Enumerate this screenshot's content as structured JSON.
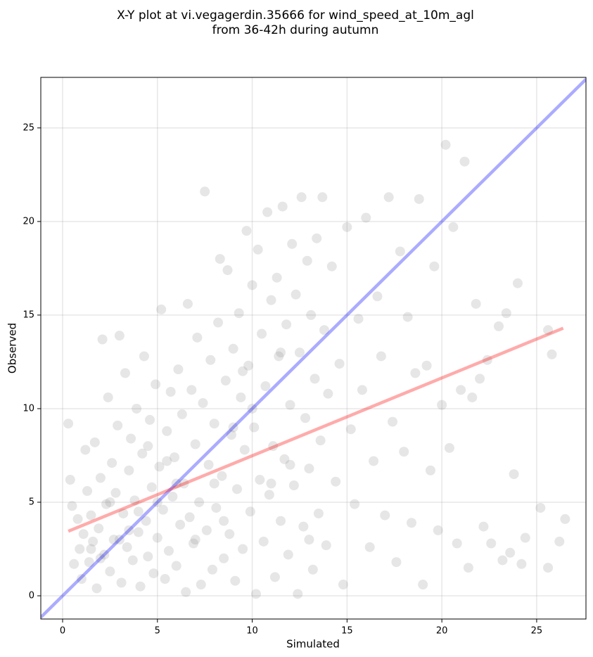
{
  "chart_data": {
    "type": "scatter",
    "title": [
      "X-Y plot at vi.vegagerdin.35666 for wind_speed_at_10m_agl",
      "from 36-42h during autumn"
    ],
    "xlabel": "Simulated",
    "ylabel": "Observed",
    "xlim": [
      -1.15,
      27.6
    ],
    "ylim": [
      -1.24,
      27.7
    ],
    "xticks": [
      0,
      5,
      10,
      15,
      20,
      25
    ],
    "yticks": [
      0,
      5,
      10,
      15,
      20,
      25
    ],
    "grid": true,
    "series": [
      {
        "color": "#808080",
        "x": [
          0.3,
          0.4,
          0.5,
          0.6,
          0.8,
          0.9,
          1.0,
          1.1,
          1.2,
          1.3,
          1.4,
          1.5,
          1.6,
          1.7,
          1.8,
          1.9,
          2.0,
          2.1,
          2.2,
          2.3,
          2.4,
          2.5,
          2.6,
          2.7,
          2.8,
          2.9,
          3.0,
          3.1,
          3.2,
          3.3,
          3.4,
          3.5,
          3.6,
          3.7,
          3.8,
          3.9,
          4.0,
          4.1,
          4.2,
          4.3,
          4.4,
          4.5,
          4.6,
          4.7,
          4.8,
          4.9,
          5.0,
          5.1,
          5.2,
          5.3,
          5.4,
          5.5,
          5.6,
          5.7,
          5.8,
          5.9,
          6.0,
          6.1,
          6.2,
          6.3,
          6.4,
          6.5,
          6.6,
          6.7,
          6.8,
          6.9,
          7.0,
          7.1,
          7.2,
          7.3,
          7.4,
          7.5,
          7.6,
          7.7,
          7.8,
          7.9,
          8.0,
          8.1,
          8.2,
          8.3,
          8.4,
          8.5,
          8.6,
          8.7,
          8.8,
          8.9,
          9.0,
          9.1,
          9.2,
          9.3,
          9.4,
          9.5,
          9.6,
          9.7,
          9.8,
          9.9,
          10.0,
          10.1,
          10.2,
          10.3,
          10.4,
          10.5,
          10.6,
          10.7,
          10.8,
          10.9,
          11.0,
          11.1,
          11.2,
          11.3,
          11.4,
          11.5,
          11.6,
          11.7,
          11.8,
          11.9,
          12.0,
          12.1,
          12.2,
          12.3,
          12.4,
          12.5,
          12.6,
          12.7,
          12.8,
          12.9,
          13.0,
          13.1,
          13.2,
          13.3,
          13.4,
          13.5,
          13.6,
          13.7,
          13.8,
          13.9,
          14.0,
          14.2,
          14.4,
          14.6,
          14.8,
          15.0,
          15.2,
          15.4,
          15.6,
          15.8,
          16.0,
          16.2,
          16.4,
          16.6,
          16.8,
          17.0,
          17.2,
          17.4,
          17.6,
          17.8,
          18.0,
          18.2,
          18.4,
          18.6,
          18.8,
          19.0,
          19.2,
          19.4,
          19.6,
          19.8,
          20.0,
          20.2,
          20.4,
          20.6,
          20.8,
          21.0,
          21.2,
          21.4,
          21.6,
          21.8,
          22.0,
          22.2,
          22.4,
          22.6,
          23.0,
          23.2,
          23.4,
          23.6,
          23.8,
          24.0,
          24.2,
          24.4,
          25.2,
          25.6,
          25.8,
          26.2,
          26.5,
          25.6,
          2.0,
          3.0,
          4.0,
          5.0,
          6.0,
          7.0,
          8.0,
          9.0,
          10.0,
          11.0,
          12.0,
          13.0,
          5.5,
          4.5,
          3.5,
          2.5,
          1.5,
          8.5,
          9.5,
          11.5
        ],
        "values": [
          9.2,
          6.2,
          4.8,
          1.7,
          4.1,
          2.5,
          0.9,
          3.3,
          7.8,
          5.6,
          1.8,
          4.3,
          2.9,
          8.2,
          0.4,
          3.6,
          6.3,
          13.7,
          2.2,
          4.9,
          10.6,
          1.3,
          7.1,
          3.0,
          5.5,
          9.1,
          13.9,
          0.7,
          4.4,
          11.9,
          2.6,
          6.7,
          8.4,
          1.9,
          5.1,
          10.0,
          3.4,
          0.5,
          7.6,
          12.8,
          4.0,
          2.1,
          9.4,
          5.8,
          1.2,
          11.3,
          3.1,
          6.9,
          15.3,
          4.6,
          0.9,
          8.8,
          2.4,
          10.9,
          5.3,
          7.4,
          1.6,
          12.1,
          3.8,
          9.7,
          6.0,
          0.2,
          15.6,
          4.2,
          11.0,
          2.8,
          8.1,
          13.8,
          5.0,
          0.6,
          10.3,
          21.6,
          3.5,
          7.0,
          12.6,
          1.4,
          9.2,
          4.7,
          14.6,
          18.0,
          6.4,
          2.0,
          11.5,
          17.4,
          3.3,
          8.6,
          13.2,
          0.8,
          5.7,
          15.1,
          10.6,
          2.5,
          7.8,
          19.5,
          12.3,
          4.5,
          16.6,
          9.0,
          0.1,
          18.5,
          6.2,
          14.0,
          2.9,
          11.2,
          20.5,
          5.4,
          15.8,
          8.0,
          1.0,
          17.0,
          12.8,
          4.0,
          20.8,
          7.3,
          14.5,
          2.2,
          10.2,
          18.8,
          5.9,
          16.1,
          0.1,
          13.0,
          21.3,
          3.7,
          9.5,
          17.9,
          6.8,
          15.0,
          1.4,
          11.6,
          19.1,
          4.4,
          8.3,
          21.3,
          14.2,
          2.7,
          10.8,
          17.6,
          6.1,
          12.4,
          0.6,
          19.7,
          8.9,
          4.9,
          14.8,
          11.0,
          20.2,
          2.6,
          7.2,
          16.0,
          12.8,
          4.3,
          21.3,
          9.3,
          1.8,
          18.4,
          7.7,
          14.9,
          3.9,
          11.9,
          21.2,
          0.6,
          12.3,
          6.7,
          17.6,
          3.5,
          10.2,
          24.1,
          7.9,
          19.7,
          2.8,
          11.0,
          23.2,
          1.5,
          10.6,
          15.6,
          11.6,
          3.7,
          12.6,
          2.8,
          14.4,
          1.9,
          15.1,
          2.3,
          6.5,
          16.7,
          1.7,
          3.1,
          4.7,
          14.2,
          12.9,
          2.9,
          4.1,
          1.5,
          2.0,
          3.0,
          4.5,
          5.0,
          6.0,
          3.0,
          6.0,
          9.0,
          10.0,
          6.0,
          7.0,
          3.0,
          7.2,
          8.0,
          3.5,
          5.0,
          2.5,
          4.0,
          12.0,
          13.0
        ]
      }
    ],
    "lines": [
      {
        "color": "#0000ff",
        "x": [
          -1.15,
          27.6
        ],
        "values": [
          -1.15,
          27.6
        ]
      },
      {
        "color": "#ff0000",
        "x": [
          0.3,
          26.4
        ],
        "values": [
          3.45,
          14.3
        ]
      }
    ]
  }
}
